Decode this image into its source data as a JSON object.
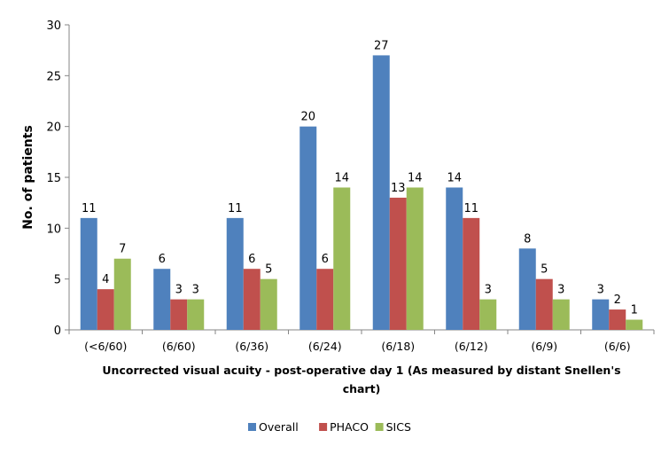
{
  "chart_data": {
    "type": "bar",
    "title": "",
    "xlabel": "Uncorrected visual acuity - post-operative day 1 (As measured by distant Snellen's chart)",
    "xlabel_lines": [
      "Uncorrected visual acuity - post-operative day 1 (As measured by distant Snellen's",
      "chart)"
    ],
    "ylabel": "No. of patients",
    "ylim": [
      0,
      30
    ],
    "yticks": [
      0,
      5,
      10,
      15,
      20,
      25,
      30
    ],
    "grid": false,
    "legend_position": "bottom",
    "categories": [
      "(<6/60)",
      "(6/60)",
      "(6/36)",
      "(6/24)",
      "(6/18)",
      "(6/12)",
      "(6/9)",
      "(6/6)"
    ],
    "series": [
      {
        "name": "Overall",
        "color": "#4f81bd",
        "values": [
          11,
          6,
          11,
          20,
          27,
          14,
          8,
          3
        ]
      },
      {
        "name": "PHACO",
        "color": "#c0504d",
        "values": [
          4,
          3,
          6,
          6,
          13,
          11,
          5,
          2
        ]
      },
      {
        "name": "SICS",
        "color": "#9bbb59",
        "values": [
          7,
          3,
          5,
          14,
          14,
          3,
          3,
          1
        ]
      }
    ]
  }
}
